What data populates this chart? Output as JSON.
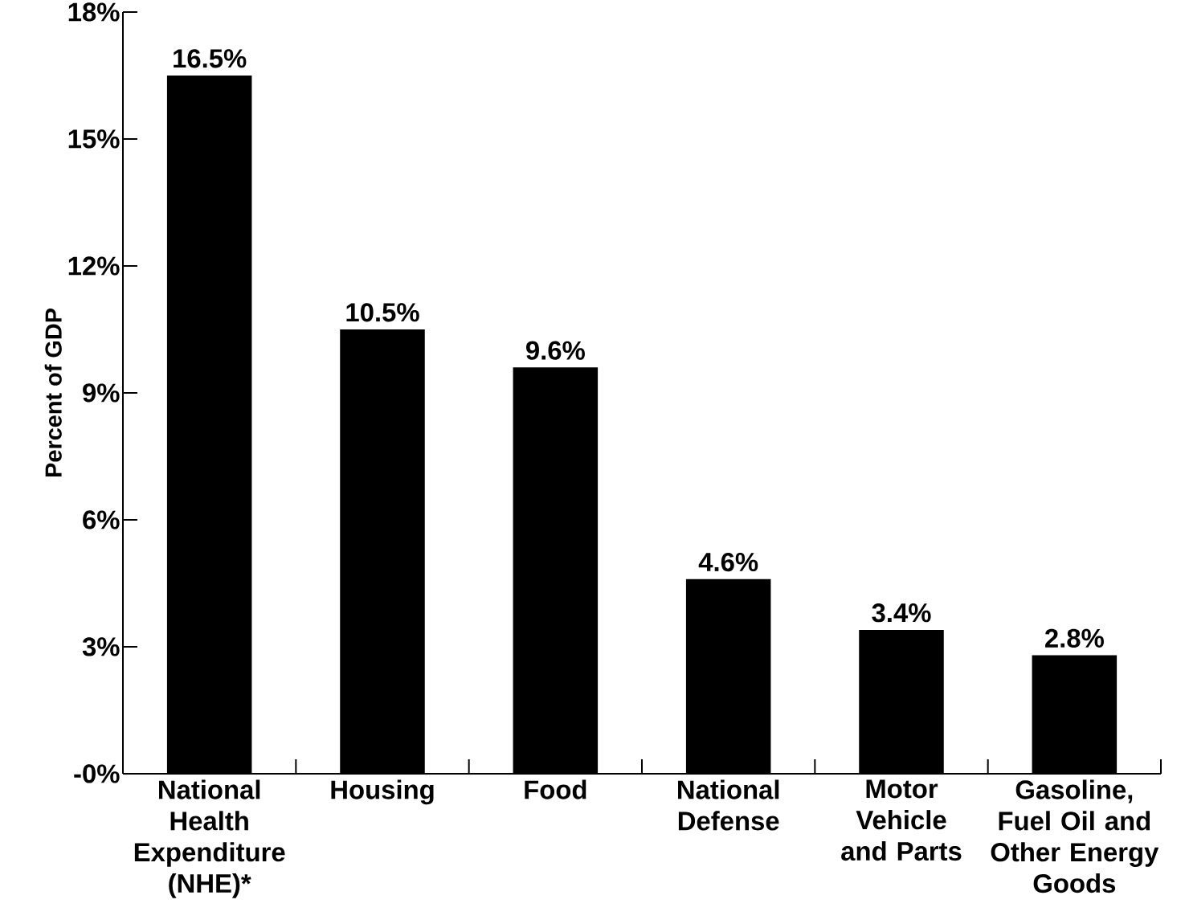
{
  "chart_data": {
    "type": "bar",
    "ylabel": "Percent of GDP",
    "categories": [
      "National Health Expenditure (NHE)*",
      "Housing",
      "Food",
      "National Defense",
      "Motor Vehicle and Parts",
      "Gasoline, Fuel Oil and Other Energy Goods"
    ],
    "values": [
      16.5,
      10.5,
      9.6,
      4.6,
      3.4,
      2.8
    ],
    "value_labels": [
      "16.5%",
      "10.5%",
      "9.6%",
      "4.6%",
      "3.4%",
      "2.8%"
    ],
    "color": "#000000",
    "ylim": [
      0,
      18
    ],
    "yticks": [
      {
        "value": 0,
        "label": "-0%"
      },
      {
        "value": 3,
        "label": "3%"
      },
      {
        "value": 6,
        "label": "6%"
      },
      {
        "value": 9,
        "label": "9%"
      },
      {
        "value": 12,
        "label": "12%"
      },
      {
        "value": 15,
        "label": "15%"
      },
      {
        "value": 18,
        "label": "18%"
      }
    ]
  }
}
